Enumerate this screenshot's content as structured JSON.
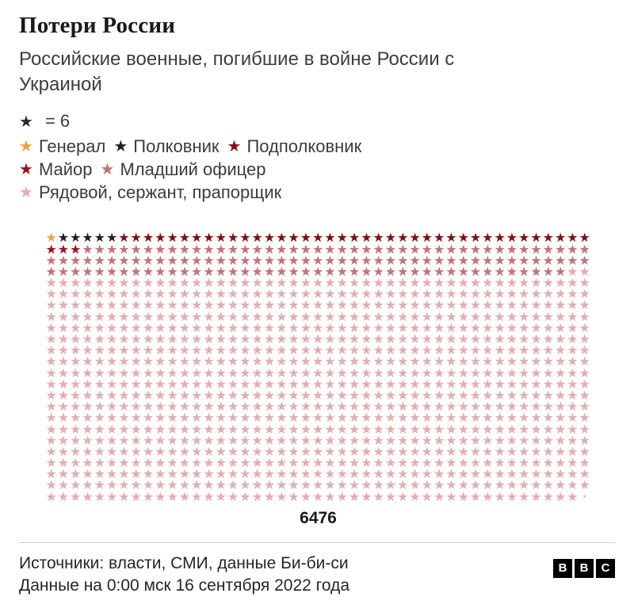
{
  "header": {
    "title": "Потери России",
    "subtitle": "Российские военные, погибшие в войне России с Украиной"
  },
  "legend": {
    "key_star_color": "#2e2a28",
    "key_text": "= 6"
  },
  "chart_data": {
    "type": "pictogram",
    "title": "Потери России",
    "subtitle": "Российские военные, погибшие в войне России с Украиной",
    "unit_symbol": "★",
    "unit_value": 6,
    "total": 6476,
    "total_label": "6476",
    "grid_columns": 45,
    "grid_rows": 24,
    "categories": [
      {
        "label": "Генерал",
        "color": "#f0a338",
        "stars": 1,
        "value": 6
      },
      {
        "label": "Полковник",
        "color": "#241f1f",
        "stars": 5,
        "value": 30
      },
      {
        "label": "Подполковник",
        "color": "#870c10",
        "stars": 39,
        "value": 234
      },
      {
        "label": "Майор",
        "color": "#a5101a",
        "stars": 3,
        "value": 18
      },
      {
        "label": "Младший офицер",
        "color": "#cb6f72",
        "stars": 130,
        "value": 780
      },
      {
        "label": "Рядовой, сержант, прапорщик",
        "color": "#e6acae",
        "stars": 901.33,
        "value": 5408
      }
    ]
  },
  "footer": {
    "sources": "Источники: власти, СМИ, данные Би-би-си",
    "updated": "Данные на 0:00 мск 16 сентября 2022 года",
    "logo_letters": [
      "B",
      "B",
      "C"
    ]
  }
}
